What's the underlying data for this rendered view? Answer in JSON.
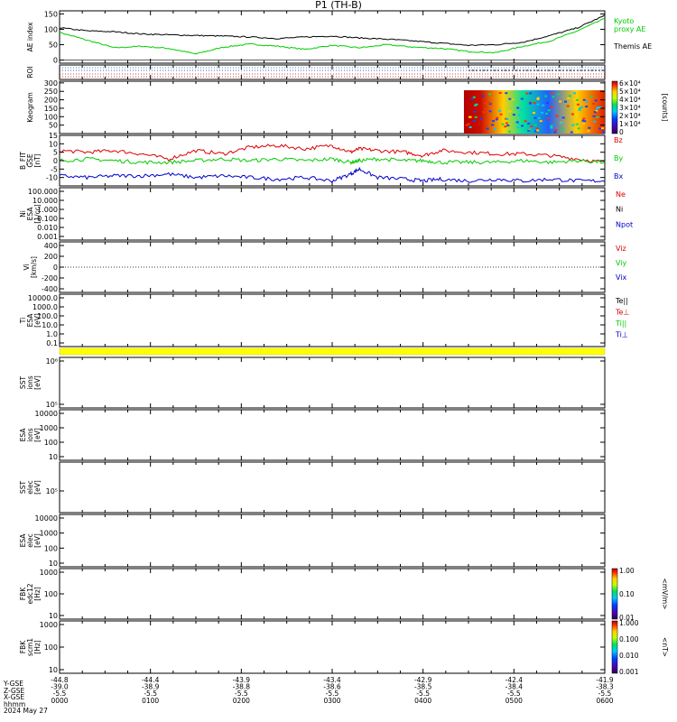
{
  "title": "P1  (TH-B)",
  "date_label": "2024 May 27",
  "x_axis": {
    "row_labels": [
      "Y-GSE",
      "Z-GSE",
      "X-GSE",
      "hhmm"
    ],
    "ticks": [
      {
        "l1": "-44.8",
        "l2": "-39.0",
        "l3": "-5.5",
        "hhmm": "0000"
      },
      {
        "l1": "-44.4",
        "l2": "-38.9",
        "l3": "-5.5",
        "hhmm": "0100"
      },
      {
        "l1": "-43.9",
        "l2": "-38.8",
        "l3": "-5.5",
        "hhmm": "0200"
      },
      {
        "l1": "-43.4",
        "l2": "-38.6",
        "l3": "-5.5",
        "hhmm": "0300"
      },
      {
        "l1": "-42.9",
        "l2": "-38.5",
        "l3": "-5.5",
        "hhmm": "0400"
      },
      {
        "l1": "-42.4",
        "l2": "-38.4",
        "l3": "-5.5",
        "hhmm": "0500"
      },
      {
        "l1": "-41.9",
        "l2": "-38.3",
        "l3": "-5.5",
        "hhmm": "0600"
      }
    ]
  },
  "colorbars": [
    {
      "unit": "[counts]",
      "ticks": [
        "6×10⁴",
        "5×10⁴",
        "4×10⁴",
        "3×10⁴",
        "2×10⁴",
        "1×10⁴",
        "0"
      ]
    },
    {
      "unit": "<mV/m>",
      "ticks": [
        "1.00",
        "0.10",
        "0.01"
      ]
    },
    {
      "unit": "<nT>",
      "ticks": [
        "1.000",
        "0.100",
        "0.010",
        "0.001"
      ]
    }
  ],
  "chart_data": [
    {
      "type": "line",
      "panel": "ae",
      "ylabel": "AE index",
      "yticks": [
        "150",
        "100",
        "50",
        "0"
      ],
      "ylim": [
        -10,
        160
      ],
      "x": [
        0,
        0.3,
        0.6,
        0.9,
        1.2,
        1.5,
        1.8,
        2.1,
        2.4,
        2.7,
        3.0,
        3.3,
        3.6,
        3.9,
        4.2,
        4.5,
        4.8,
        5.1,
        5.4,
        5.7,
        6.0
      ],
      "series": [
        {
          "name": "Kyoto\nproxy AE",
          "color": "#00cc00",
          "values": [
            90,
            65,
            40,
            45,
            38,
            20,
            42,
            52,
            45,
            35,
            48,
            40,
            50,
            42,
            38,
            28,
            24,
            45,
            62,
            95,
            135
          ]
        },
        {
          "name": "Themis AE",
          "color": "#000000",
          "values": [
            105,
            95,
            92,
            85,
            82,
            80,
            78,
            75,
            70,
            75,
            78,
            72,
            68,
            62,
            55,
            48,
            50,
            58,
            80,
            105,
            145
          ]
        }
      ]
    },
    {
      "type": "line",
      "panel": "roi",
      "ylabel": "ROI",
      "yticks": []
    },
    {
      "type": "heatmap",
      "panel": "keogram",
      "ylabel": "Keogram",
      "yticks": [
        "300",
        "250",
        "200",
        "150",
        "100",
        "50"
      ],
      "ylim": [
        0,
        310
      ],
      "x_range": [
        4.45,
        6.0
      ]
    },
    {
      "type": "line",
      "panel": "bfield",
      "ylabel": "B_FIT\nGSE\n[nT]",
      "yticks": [
        "15",
        "10",
        "5",
        "0",
        "-5",
        "-10"
      ],
      "ylim": [
        -15,
        15
      ],
      "x": [
        0,
        0.3,
        0.6,
        0.9,
        1.2,
        1.5,
        1.8,
        2.1,
        2.4,
        2.7,
        3.0,
        3.2,
        3.3,
        3.5,
        3.8,
        4.0,
        4.2,
        4.5,
        4.8,
        5.1,
        5.4,
        5.7,
        6.0
      ],
      "series": [
        {
          "name": "Bz",
          "color": "#dd0000",
          "values": [
            6,
            5,
            6,
            4,
            1,
            6,
            4,
            8,
            9,
            7,
            9,
            5,
            7,
            6,
            5,
            3,
            6,
            5,
            4,
            4,
            3,
            1,
            -1
          ]
        },
        {
          "name": "By",
          "color": "#00cc00",
          "values": [
            0,
            1,
            0,
            -1,
            -1,
            0,
            1,
            0,
            1,
            0,
            1,
            -1,
            0,
            1,
            0,
            0,
            -1,
            -1,
            -1,
            0,
            -1,
            0,
            -1
          ]
        },
        {
          "name": "Bx",
          "color": "#0000cc",
          "values": [
            -9,
            -10,
            -9,
            -9,
            -8,
            -10,
            -9,
            -10,
            -11,
            -10,
            -12,
            -8,
            -5,
            -10,
            -11,
            -12,
            -11,
            -12,
            -11,
            -12,
            -11,
            -12,
            -12
          ]
        }
      ]
    },
    {
      "type": "line",
      "panel": "ni",
      "ylabel": "Ni\nESA\n[1/cc]",
      "yticks": [
        "100.000",
        "10.000",
        "1.000",
        "0.100",
        "0.010",
        "0.001"
      ],
      "legend": [
        "Ne",
        "Ni",
        "Npot"
      ],
      "colors": [
        "#dd0000",
        "#000000",
        "#0000cc"
      ]
    },
    {
      "type": "line",
      "panel": "vi",
      "ylabel": "Vi\n[km/s]",
      "yticks": [
        "400",
        "200",
        "0",
        "-200",
        "-400"
      ],
      "legend": [
        "Viz",
        "Viy",
        "Vix"
      ],
      "colors": [
        "#dd0000",
        "#00cc00",
        "#0000cc"
      ]
    },
    {
      "type": "line",
      "panel": "ti",
      "ylabel": "Ti\nESA\n[eV]",
      "yticks": [
        "10000.0",
        "1000.0",
        "100.0",
        "10.0",
        "1.0",
        "0.1"
      ],
      "legend": [
        "Te||",
        "Te⊥",
        "Ti||",
        "Ti⊥"
      ],
      "colors": [
        "#000000",
        "#dd0000",
        "#00cc00",
        "#0000cc"
      ]
    },
    {
      "type": "heatmap",
      "panel": "sst_ion",
      "ylabel": "SST\nions\n[eV]",
      "yticks": [
        "10⁶",
        "10⁵"
      ]
    },
    {
      "type": "heatmap",
      "panel": "esa_ion",
      "ylabel": "ESA\nions\n[eV]",
      "yticks": [
        "10000",
        "1000",
        "100",
        "10"
      ]
    },
    {
      "type": "heatmap",
      "panel": "sst_elec",
      "ylabel": "SST\nelec\n[eV]",
      "yticks": [
        "10⁵"
      ]
    },
    {
      "type": "heatmap",
      "panel": "esa_elec",
      "ylabel": "ESA\nelec\n[eV]",
      "yticks": [
        "10000",
        "1000",
        "100",
        "10"
      ]
    },
    {
      "type": "heatmap",
      "panel": "fbk_e",
      "ylabel": "FBK\nedc12\n[Hz]",
      "yticks": [
        "1000",
        "100",
        "10"
      ]
    },
    {
      "type": "heatmap",
      "panel": "fbk_b",
      "ylabel": "FBK\nscm1\n[Hz]",
      "yticks": [
        "1000",
        "100",
        "10"
      ]
    }
  ]
}
